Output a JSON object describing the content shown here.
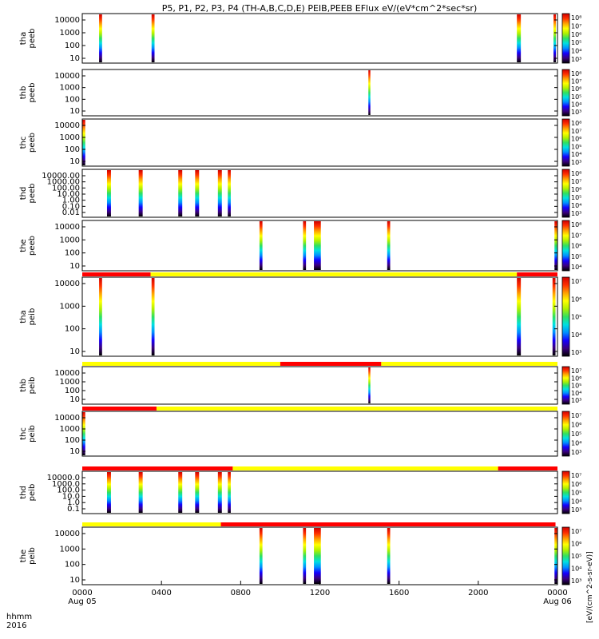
{
  "chart_data": {
    "type": "heatmap",
    "title": "P5, P1, P2, P3, P4 (TH-A,B,C,D,E) PEIB,PEEB EFlux eV/(eV*cm^2*sec*sr)",
    "colorbar_label": "[eV/(cm^2-s-sr-eV)]",
    "colormap": [
      "#000000",
      "#3a0080",
      "#1400ff",
      "#0090ff",
      "#00e0e0",
      "#30e060",
      "#b0f000",
      "#ffff00",
      "#ffa000",
      "#ff3000",
      "#d00000"
    ],
    "x_axis": {
      "label_top": "hhmm",
      "label_bottom": "2016",
      "range_hours": [
        0,
        24
      ],
      "ticks": [
        {
          "h": 0,
          "label": "0000",
          "sub": "Aug 05"
        },
        {
          "h": 4,
          "label": "0400",
          "sub": ""
        },
        {
          "h": 8,
          "label": "0800",
          "sub": ""
        },
        {
          "h": 12,
          "label": "1200",
          "sub": ""
        },
        {
          "h": 16,
          "label": "1600",
          "sub": ""
        },
        {
          "h": 20,
          "label": "2000",
          "sub": ""
        },
        {
          "h": 24,
          "label": "0000",
          "sub": "Aug 06"
        }
      ]
    },
    "mode_bar_colors": {
      "fast": "#ff0000",
      "slow": "#ffff00"
    },
    "panels": [
      {
        "probe": "tha",
        "product": "peeb",
        "ylabel": "tha\npeeb",
        "yticks": [
          "10000",
          "1000",
          "100",
          "10"
        ],
        "cb_ticks": [
          "10⁸",
          "10⁷",
          "10⁶",
          "10⁵",
          "10⁴",
          "10³"
        ],
        "intervals": [
          [
            0.85,
            1.0
          ],
          [
            3.5,
            3.65
          ],
          [
            21.95,
            22.15
          ],
          [
            23.8,
            23.92
          ]
        ],
        "mode_bar": null
      },
      {
        "probe": "thb",
        "product": "peeb",
        "ylabel": "thb\npeeb",
        "yticks": [
          "10000",
          "1000",
          "100",
          "10"
        ],
        "cb_ticks": [
          "10⁸",
          "10⁷",
          "10⁶",
          "10⁵",
          "10⁴",
          "10³"
        ],
        "intervals": [
          [
            14.45,
            14.55
          ]
        ],
        "mode_bar": null
      },
      {
        "probe": "thc",
        "product": "peeb",
        "ylabel": "thc\npeeb",
        "yticks": [
          "10000",
          "1000",
          "100",
          "10"
        ],
        "cb_ticks": [
          "10⁸",
          "10⁷",
          "10⁶",
          "10⁵",
          "10⁴",
          "10³"
        ],
        "intervals": [
          [
            0.0,
            0.15
          ]
        ],
        "mode_bar": null
      },
      {
        "probe": "thd",
        "product": "peeb",
        "ylabel": "thd\npeeb",
        "yticks": [
          "10000.00",
          "1000.00",
          "100.00",
          "10.00",
          "1.00",
          "0.10",
          "0.01"
        ],
        "cb_ticks": [
          "10⁸",
          "10⁷",
          "10⁶",
          "10⁵",
          "10⁴",
          "10³"
        ],
        "intervals": [
          [
            1.25,
            1.45
          ],
          [
            2.85,
            3.05
          ],
          [
            4.85,
            5.05
          ],
          [
            5.7,
            5.9
          ],
          [
            6.85,
            7.05
          ],
          [
            7.35,
            7.5
          ]
        ],
        "mode_bar": null
      },
      {
        "probe": "the",
        "product": "peeb",
        "ylabel": "the\npeeb",
        "yticks": [
          "10000",
          "1000",
          "100",
          "10"
        ],
        "cb_ticks": [
          "10⁸",
          "10⁷",
          "10⁶",
          "10⁵",
          "10⁴"
        ],
        "intervals": [
          [
            8.95,
            9.1
          ],
          [
            11.15,
            11.3
          ],
          [
            11.7,
            12.05
          ],
          [
            15.4,
            15.55
          ],
          [
            23.85,
            24.0
          ]
        ],
        "mode_bar": null
      },
      {
        "probe": "tha",
        "product": "peib",
        "ylabel": "tha\npeib",
        "yticks": [
          "10000",
          "1000",
          "100",
          "10"
        ],
        "cb_ticks": [
          "10⁷",
          "10⁶",
          "10⁵",
          "10⁴",
          "10³"
        ],
        "intervals": [
          [
            0.85,
            1.0
          ],
          [
            3.5,
            3.65
          ],
          [
            21.95,
            22.15
          ],
          [
            23.75,
            23.9
          ]
        ],
        "mode_bar": [
          [
            0,
            3.45,
            "fast"
          ],
          [
            3.45,
            21.95,
            "slow"
          ],
          [
            21.95,
            24,
            "fast"
          ]
        ]
      },
      {
        "probe": "thb",
        "product": "peib",
        "ylabel": "thb\npeib",
        "yticks": [
          "10000",
          "1000",
          "100",
          "10"
        ],
        "cb_ticks": [
          "10⁷",
          "10⁶",
          "10⁵",
          "10⁴",
          "10³"
        ],
        "intervals": [
          [
            14.45,
            14.55
          ]
        ],
        "mode_bar": [
          [
            0,
            10.0,
            "slow"
          ],
          [
            10.0,
            15.1,
            "fast"
          ],
          [
            15.1,
            24,
            "slow"
          ]
        ]
      },
      {
        "probe": "thc",
        "product": "peib",
        "ylabel": "thc\npeib",
        "yticks": [
          "10000",
          "1000",
          "100",
          "10"
        ],
        "cb_ticks": [
          "10⁷",
          "10⁶",
          "10⁵",
          "10⁴",
          "10³"
        ],
        "intervals": [
          [
            0.0,
            0.15
          ]
        ],
        "mode_bar": [
          [
            0,
            3.75,
            "fast"
          ],
          [
            3.75,
            24,
            "slow"
          ]
        ]
      },
      {
        "probe": "thd",
        "product": "peib",
        "ylabel": "thd\npeib",
        "yticks": [
          "10000.0",
          "1000.0",
          "100.0",
          "10.0",
          "1.0",
          "0.1"
        ],
        "cb_ticks": [
          "10⁷",
          "10⁶",
          "10⁵",
          "10⁴",
          "10³"
        ],
        "intervals": [
          [
            1.25,
            1.45
          ],
          [
            2.85,
            3.05
          ],
          [
            4.85,
            5.05
          ],
          [
            5.7,
            5.9
          ],
          [
            6.85,
            7.05
          ],
          [
            7.35,
            7.5
          ]
        ],
        "mode_bar": [
          [
            0,
            7.6,
            "fast"
          ],
          [
            7.6,
            21.0,
            "slow"
          ],
          [
            21.0,
            24,
            "fast"
          ]
        ]
      },
      {
        "probe": "the",
        "product": "peib",
        "ylabel": "the\npeib",
        "yticks": [
          "10000",
          "1000",
          "100",
          "10"
        ],
        "cb_ticks": [
          "10⁷",
          "10⁶",
          "10⁵",
          "10⁴",
          "10³"
        ],
        "intervals": [
          [
            8.95,
            9.1
          ],
          [
            11.15,
            11.3
          ],
          [
            11.7,
            12.05
          ],
          [
            15.4,
            15.55
          ],
          [
            23.85,
            24.0
          ]
        ],
        "mode_bar": [
          [
            0,
            7.0,
            "slow"
          ],
          [
            7.0,
            23.9,
            "fast"
          ]
        ]
      }
    ]
  }
}
